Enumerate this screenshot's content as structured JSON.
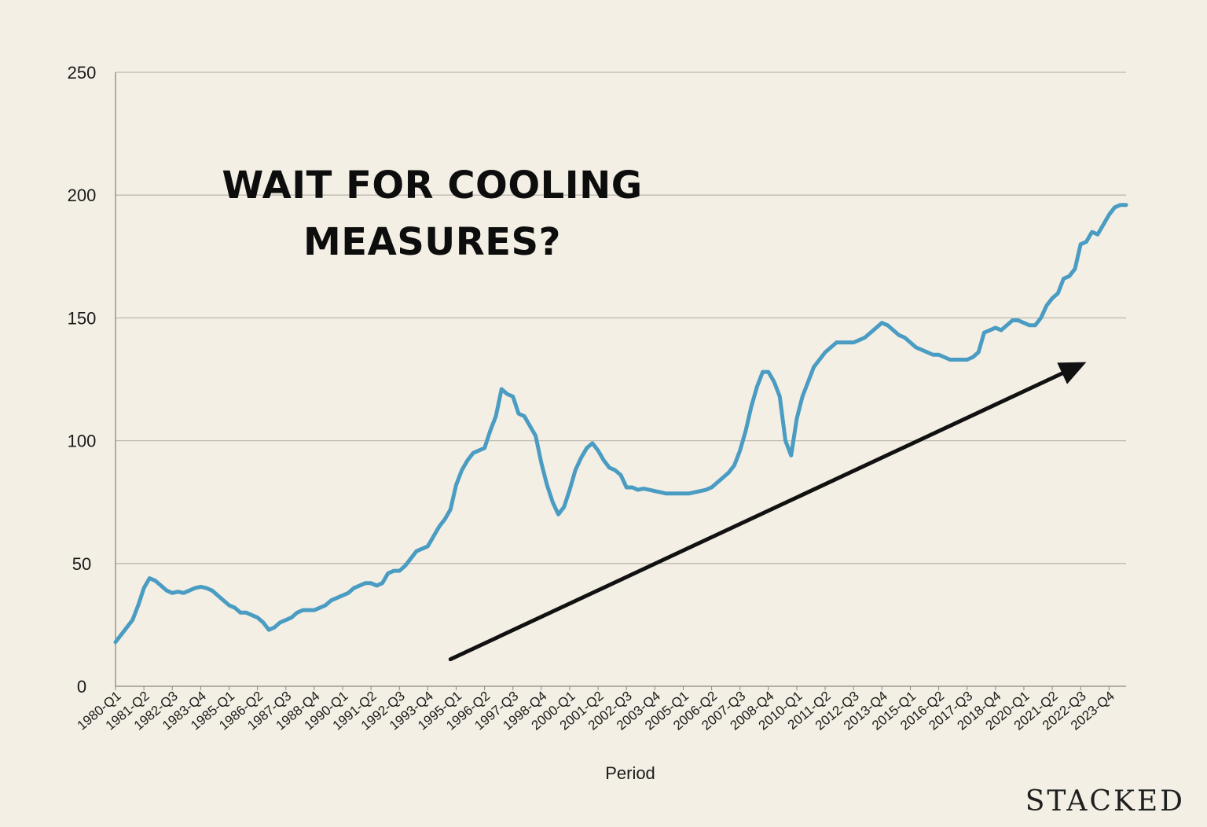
{
  "headline": {
    "line1": "WAIT FOR COOLING",
    "line2": "MEASURES?"
  },
  "brand": "STACKED",
  "chart_data": {
    "type": "line",
    "xlabel": "Period",
    "ylabel": "",
    "ylim": [
      0,
      250
    ],
    "yticks": [
      0,
      50,
      100,
      150,
      200,
      250
    ],
    "grid": true,
    "line_color": "#4a9cc3",
    "arrow_color": "#111111",
    "x_tick_labels": [
      "1980-Q1",
      "1981-Q2",
      "1982-Q3",
      "1983-Q4",
      "1985-Q1",
      "1986-Q2",
      "1987-Q3",
      "1988-Q4",
      "1990-Q1",
      "1991-Q2",
      "1992-Q3",
      "1993-Q4",
      "1995-Q1",
      "1996-Q2",
      "1997-Q3",
      "1998-Q4",
      "2000-Q1",
      "2001-Q2",
      "2002-Q3",
      "2003-Q4",
      "2005-Q1",
      "2006-Q2",
      "2007-Q3",
      "2008-Q4",
      "2010-Q1",
      "2011-Q2",
      "2012-Q3",
      "2013-Q4",
      "2015-Q1",
      "2016-Q2",
      "2017-Q3",
      "2018-Q4",
      "2020-Q1",
      "2021-Q2",
      "2022-Q3",
      "2023-Q4"
    ],
    "series": [
      {
        "values": [
          18,
          21,
          24,
          27,
          33,
          40,
          44,
          43,
          41,
          39,
          38,
          38.5,
          38,
          39,
          40,
          40.5,
          40,
          39,
          37,
          35,
          33,
          32,
          30,
          30,
          29,
          28,
          26,
          23,
          24,
          26,
          27,
          28,
          30,
          31,
          31,
          31,
          32,
          33,
          35,
          36,
          37,
          38,
          40,
          41,
          42,
          42,
          41,
          42,
          46,
          47,
          47,
          49,
          52,
          55,
          56,
          57,
          61,
          65,
          68,
          72,
          82,
          88,
          92,
          95,
          96,
          97,
          104,
          110,
          121,
          119,
          118,
          111,
          110,
          106,
          102,
          91,
          82,
          75,
          70,
          73,
          80,
          88,
          93,
          97,
          99,
          96,
          92,
          89,
          88,
          86,
          81,
          81,
          80,
          80.5,
          80,
          79.5,
          79,
          78.5,
          78.5,
          78.5,
          78.5,
          78.5,
          79,
          79.5,
          80,
          81,
          83,
          85,
          87,
          90,
          96,
          104,
          114,
          122,
          128,
          128,
          124,
          118,
          100,
          94,
          109,
          118,
          124,
          130,
          133,
          136,
          138,
          140,
          140,
          140,
          140,
          141,
          142,
          144,
          146,
          148,
          147,
          145,
          143,
          142,
          140,
          138,
          137,
          136,
          135,
          135,
          134,
          133,
          133,
          133,
          133,
          134,
          136,
          144,
          145,
          146,
          145,
          147,
          149,
          149,
          148,
          147,
          147,
          150,
          155,
          158,
          160,
          166,
          167,
          170,
          180,
          181,
          185,
          184,
          188,
          192,
          195,
          196,
          196
        ]
      }
    ],
    "annotation": {
      "type": "trend-arrow",
      "from": {
        "x_index": 59,
        "y": 11
      },
      "to": {
        "x_index": 171,
        "y": 132
      }
    }
  }
}
